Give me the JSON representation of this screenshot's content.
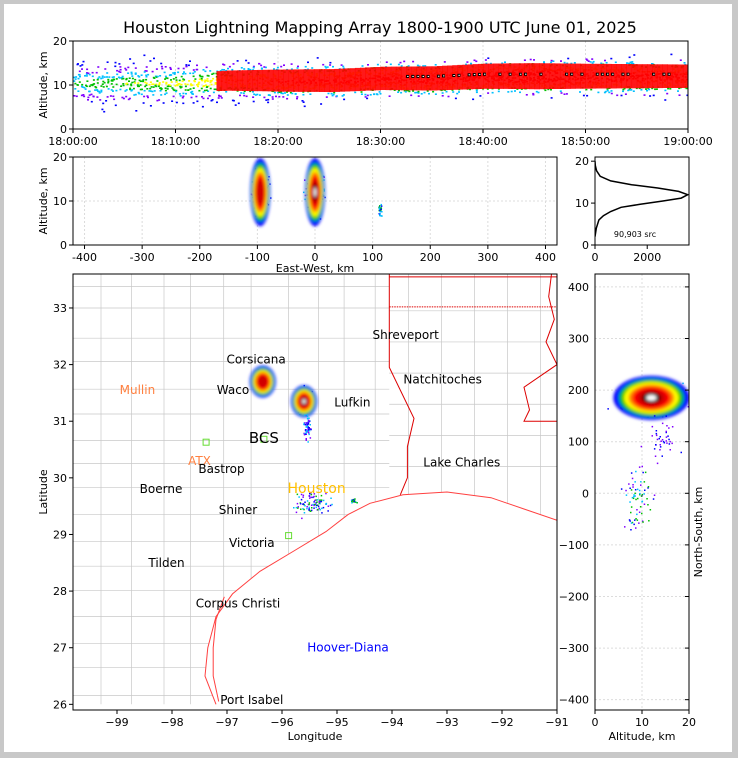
{
  "chart_data": [
    {
      "type": "heatmap",
      "panel": "altitude-time",
      "title": "Houston Lightning Mapping Array 1800-1900 UTC June 01, 2025",
      "ylabel": "Altitude, km",
      "xlabel": "",
      "x_ticks": [
        "18:00:00",
        "18:10:00",
        "18:20:00",
        "18:30:00",
        "18:40:00",
        "18:50:00",
        "19:00:00"
      ],
      "xlim": [
        "18:00:00",
        "19:00:00"
      ],
      "ylim": [
        0,
        20
      ],
      "y_ticks": [
        0,
        10,
        20
      ],
      "density_profile": {
        "time_min": [
          0,
          5,
          10,
          15,
          20,
          25,
          30,
          35,
          40,
          45,
          50,
          55,
          60
        ],
        "center_alt_km": [
          10.5,
          10.5,
          10.5,
          11,
          11,
          11,
          11.5,
          11.5,
          12,
          12,
          12,
          12,
          12
        ],
        "intensity": [
          0.35,
          0.45,
          0.5,
          0.6,
          0.72,
          0.78,
          0.8,
          0.86,
          0.92,
          0.98,
          0.9,
          0.85,
          0.8
        ]
      },
      "grid": true
    },
    {
      "type": "heatmap",
      "panel": "altitude-eastwest",
      "xlabel": "East-West, km",
      "ylabel": "Altitude, km",
      "xlim": [
        -420,
        420
      ],
      "ylim": [
        0,
        20
      ],
      "x_ticks": [
        -400,
        -300,
        -200,
        -100,
        0,
        100,
        200,
        300,
        400
      ],
      "y_ticks": [
        0,
        10,
        20
      ],
      "cells": [
        {
          "x_km": -95,
          "alt_km": 12,
          "intensity": 0.82
        },
        {
          "x_km": 0,
          "alt_km": 12,
          "intensity": 1.0
        },
        {
          "x_km": 112,
          "alt_km": 8,
          "intensity": 0.3
        }
      ],
      "grid": true
    },
    {
      "type": "line",
      "panel": "source-altitude-histogram",
      "annotation": "90,903 src",
      "xlim": [
        0,
        3600
      ],
      "ylim": [
        0,
        21
      ],
      "x_ticks": [
        0,
        2000
      ],
      "y_ticks": [
        0,
        10,
        20
      ],
      "x": [
        0,
        50,
        150,
        320,
        600,
        1000,
        1700,
        2600,
        3300,
        3550,
        3200,
        2400,
        1400,
        600,
        200,
        60,
        10,
        0
      ],
      "y": [
        2,
        4,
        6,
        7,
        8,
        9,
        9.7,
        10.5,
        11.2,
        12,
        12.8,
        13.6,
        14.4,
        15.3,
        16.4,
        17.7,
        19,
        20
      ]
    },
    {
      "type": "scatter",
      "panel": "plan-view-map",
      "xlabel": "Longitude",
      "ylabel": "Latitude",
      "xlim": [
        -99.8,
        -91.0
      ],
      "ylim": [
        25.9,
        33.6
      ],
      "x_ticks": [
        -99,
        -98,
        -97,
        -96,
        -95,
        -94,
        -93,
        -92,
        -91
      ],
      "y_ticks": [
        26,
        27,
        28,
        29,
        30,
        31,
        32,
        33
      ],
      "cities": [
        {
          "name": "Shreveport",
          "lon": -93.75,
          "lat": 32.52,
          "color": "#000000"
        },
        {
          "name": "Corsicana",
          "lon": -96.47,
          "lat": 32.09,
          "color": "#000000"
        },
        {
          "name": "Natchitoches",
          "lon": -93.08,
          "lat": 31.74,
          "color": "#000000"
        },
        {
          "name": "Mullin",
          "lon": -98.63,
          "lat": 31.55,
          "color": "#ff8040"
        },
        {
          "name": "Waco",
          "lon": -96.89,
          "lat": 31.55,
          "color": "#000000"
        },
        {
          "name": "Lufkin",
          "lon": -94.72,
          "lat": 31.33,
          "color": "#000000"
        },
        {
          "name": "BCS",
          "lon": -96.33,
          "lat": 30.69,
          "color": "#000000"
        },
        {
          "name": "ATX",
          "lon": -97.5,
          "lat": 30.3,
          "color": "#ff8040"
        },
        {
          "name": "Bastrop",
          "lon": -97.1,
          "lat": 30.16,
          "color": "#000000"
        },
        {
          "name": "Lake Charles",
          "lon": -92.73,
          "lat": 30.27,
          "color": "#000000"
        },
        {
          "name": "Houston",
          "lon": -95.37,
          "lat": 29.8,
          "color": "#ffc000"
        },
        {
          "name": "Boerne",
          "lon": -98.2,
          "lat": 29.8,
          "color": "#000000"
        },
        {
          "name": "Shiner",
          "lon": -96.8,
          "lat": 29.43,
          "color": "#000000"
        },
        {
          "name": "Victoria",
          "lon": -96.55,
          "lat": 28.85,
          "color": "#000000"
        },
        {
          "name": "Tilden",
          "lon": -98.1,
          "lat": 28.5,
          "color": "#000000"
        },
        {
          "name": "Corpus Christi",
          "lon": -96.8,
          "lat": 27.78,
          "color": "#000000"
        },
        {
          "name": "Hoover-Diana",
          "lon": -94.8,
          "lat": 27.0,
          "color": "#0000ff"
        },
        {
          "name": "Port Isabel",
          "lon": -96.55,
          "lat": 26.08,
          "color": "#000000"
        }
      ],
      "storm_cells": [
        {
          "lon": -96.35,
          "lat": 31.7,
          "intensity": 0.82
        },
        {
          "lon": -95.6,
          "lat": 31.35,
          "intensity": 1.0
        }
      ],
      "sensor_markers": [
        {
          "lon": -97.38,
          "lat": 30.63
        },
        {
          "lon": -96.33,
          "lat": 30.68
        },
        {
          "lon": -95.88,
          "lat": 28.98
        }
      ],
      "grid": false
    },
    {
      "type": "heatmap",
      "panel": "altitude-northsouth",
      "xlabel": "Altitude, km",
      "ylabel": "North-South, km",
      "xlim": [
        0,
        20
      ],
      "ylim": [
        -420,
        425
      ],
      "x_ticks": [
        0,
        10,
        20
      ],
      "y_ticks": [
        -400,
        -300,
        -200,
        -100,
        0,
        100,
        200,
        300,
        400
      ],
      "cells": [
        {
          "ns_km": 185,
          "alt_km": 12,
          "intensity": 1.0
        },
        {
          "ns_km": -15,
          "alt_km": 9,
          "intensity": 0.3
        }
      ],
      "grid": true
    }
  ],
  "colors": {
    "density_scale": [
      "#0000ff",
      "#8000ff",
      "#00c0ff",
      "#00c000",
      "#ffff00",
      "#ff8000",
      "#ff0000",
      "#d00000",
      "#000000",
      "#ffffff"
    ],
    "state_borders": "#dd0000",
    "coastline": "#ff4040",
    "county_lines": "#c8c8c8",
    "sensor_marker": "#66dd33"
  }
}
